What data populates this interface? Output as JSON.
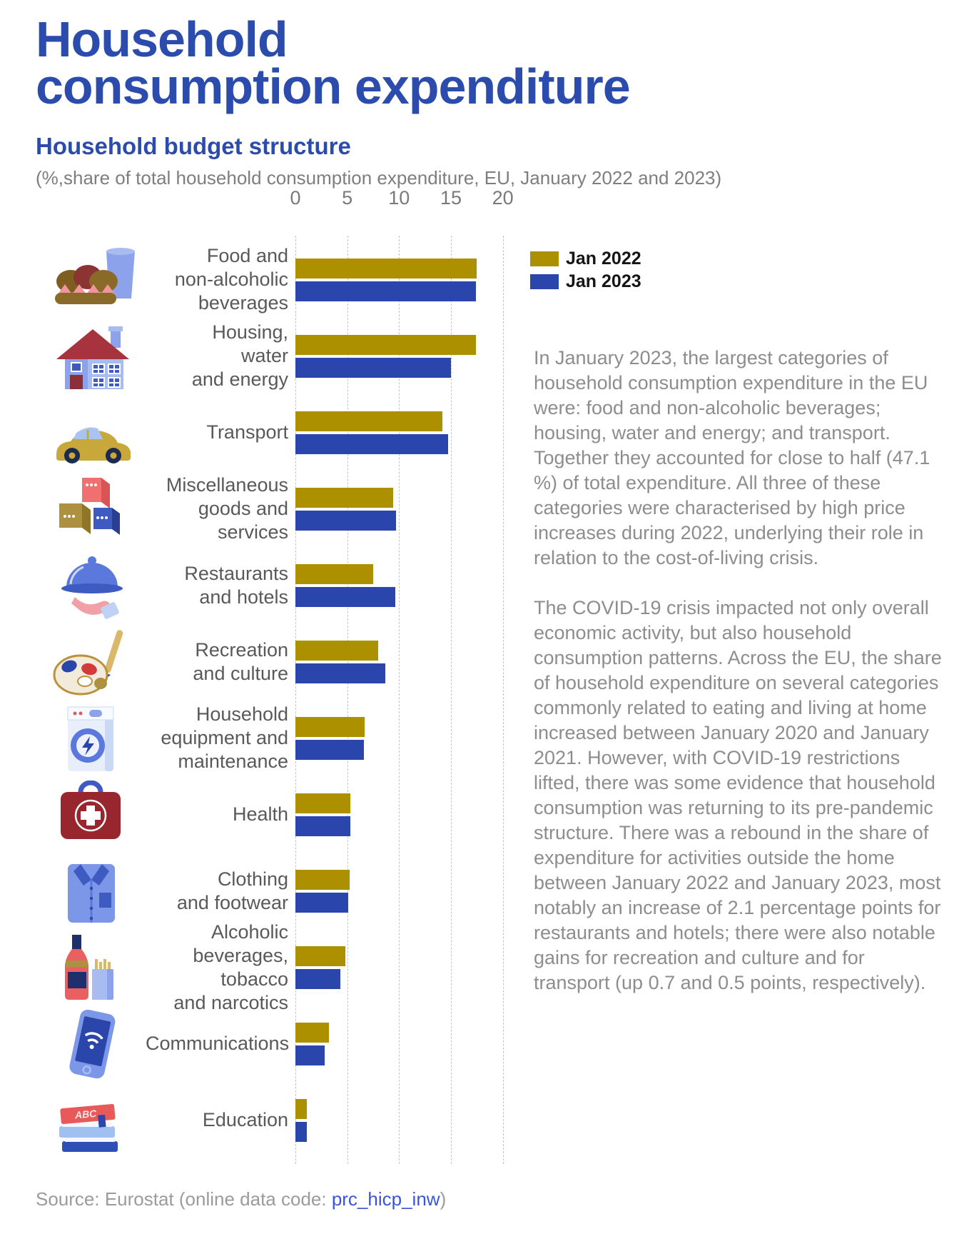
{
  "header": {
    "title": "Household\nconsumption expenditure",
    "subtitle": "Household budget structure",
    "note": "(%,share of total household consumption expenditure, EU,  January 2022 and 2023)"
  },
  "legend": {
    "items": [
      {
        "label": "Jan 2022",
        "color": "#AC9000"
      },
      {
        "label": "Jan 2023",
        "color": "#2A46AC"
      }
    ]
  },
  "chart_data": {
    "type": "bar",
    "orientation": "horizontal",
    "title": "Household budget structure",
    "xlabel": "% share of total household consumption expenditure",
    "x_ticks": [
      "0",
      "5",
      "10",
      "15",
      "20"
    ],
    "xlim": [
      0,
      20
    ],
    "grid": "dashed-vertical",
    "legend_position": "top-right",
    "categories": [
      "Food and\nnon-alcoholic\nbeverages",
      "Housing,\nwater\nand energy",
      "Transport",
      "Miscellaneous\ngoods and\nservices",
      "Restaurants\nand hotels",
      "Recreation\nand culture",
      "Household\nequipment and\nmaintenance",
      "Health",
      "Clothing\nand footwear",
      "Alcoholic\nbeverages,\ntobacco\nand narcotics",
      "Communications",
      "Education"
    ],
    "icons": [
      "food-icon",
      "housing-icon",
      "transport-icon",
      "miscellaneous-goods-icon",
      "restaurants-hotels-icon",
      "recreation-culture-icon",
      "household-equipment-icon",
      "health-icon",
      "clothing-footwear-icon",
      "alcohol-tobacco-icon",
      "communications-icon",
      "education-icon"
    ],
    "series": [
      {
        "name": "Jan 2022",
        "color": "#AC9000",
        "values": [
          17.5,
          17.4,
          14.2,
          9.4,
          7.5,
          8.0,
          6.7,
          5.3,
          5.2,
          4.8,
          3.2,
          1.1
        ]
      },
      {
        "name": "Jan 2023",
        "color": "#2A46AC",
        "values": [
          17.4,
          15.0,
          14.7,
          9.7,
          9.6,
          8.7,
          6.6,
          5.3,
          5.1,
          4.3,
          2.8,
          1.1
        ]
      }
    ]
  },
  "icon_text": {
    "abc": "ABC"
  },
  "body": {
    "paragraphs": [
      "In January 2023, the largest categories of household consumption expenditure in the EU were: food and non-alcoholic beverages; housing, water and energy; and transport. Together they accounted for close to half (47.1 %) of total expenditure. All three of these categories were characterised by high price increases during 2022, underlying their role in relation to the cost-of-living crisis.",
      "The COVID-19 crisis impacted not only overall economic activity, but also household consumption patterns. Across the EU, the share of household expenditure on several categories commonly related to eating and living at home increased between January 2020 and January 2021. However, with COVID-19 restrictions lifted, there was some evidence that household consumption was returning to its pre-pandemic structure. There was a rebound in the share of expenditure for activities outside the home between January 2022 and January 2023, most notably an increase of 2.1 percentage points for restaurants and hotels; there were also notable gains for recreation and culture and for transport (up 0.7 and 0.5 points, respectively)."
    ]
  },
  "source": {
    "prefix": "Source: Eurostat (online data code: ",
    "link": "prc_hicp_inw",
    "suffix": ")"
  }
}
